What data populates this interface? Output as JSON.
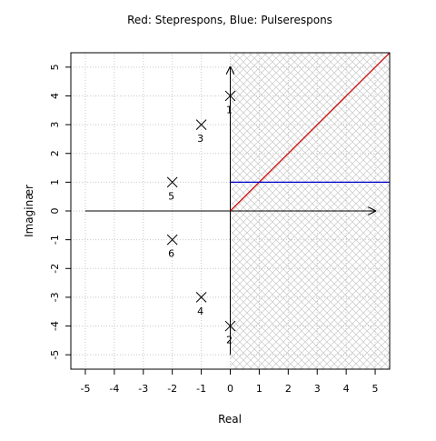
{
  "chart_data": {
    "type": "scatter",
    "title": "Red: Steprespons, Blue: Pulserespons",
    "xlabel": "Real",
    "ylabel": "Imaginær",
    "xlim": [
      -5.5,
      5.5
    ],
    "ylim": [
      -5.5,
      5.5
    ],
    "x_ticks": [
      -5,
      -4,
      -3,
      -2,
      -1,
      0,
      1,
      2,
      3,
      4,
      5
    ],
    "y_ticks": [
      -5,
      -4,
      -3,
      -2,
      -1,
      0,
      1,
      2,
      3,
      4,
      5
    ],
    "grid": true,
    "hatched_region": {
      "x_from": 0,
      "x_to": 5.5,
      "color": "#c8c8c8"
    },
    "axes_arrows": [
      {
        "from": [
          -5,
          0
        ],
        "to": [
          5,
          0
        ]
      },
      {
        "from": [
          0,
          -5
        ],
        "to": [
          0,
          5
        ]
      }
    ],
    "points": [
      {
        "x": 0,
        "y": 4,
        "label": "1"
      },
      {
        "x": 0,
        "y": -4,
        "label": "2"
      },
      {
        "x": -1,
        "y": 3,
        "label": "3"
      },
      {
        "x": -1,
        "y": -3,
        "label": "4"
      },
      {
        "x": -2,
        "y": 1,
        "label": "5"
      },
      {
        "x": -2,
        "y": -1,
        "label": "6"
      }
    ],
    "lines": [
      {
        "color": "#d00000",
        "points": [
          [
            0,
            0
          ],
          [
            5.5,
            5.5
          ]
        ]
      },
      {
        "color": "#0000cc",
        "points": [
          [
            0,
            1
          ],
          [
            5.5,
            1
          ]
        ]
      }
    ]
  }
}
